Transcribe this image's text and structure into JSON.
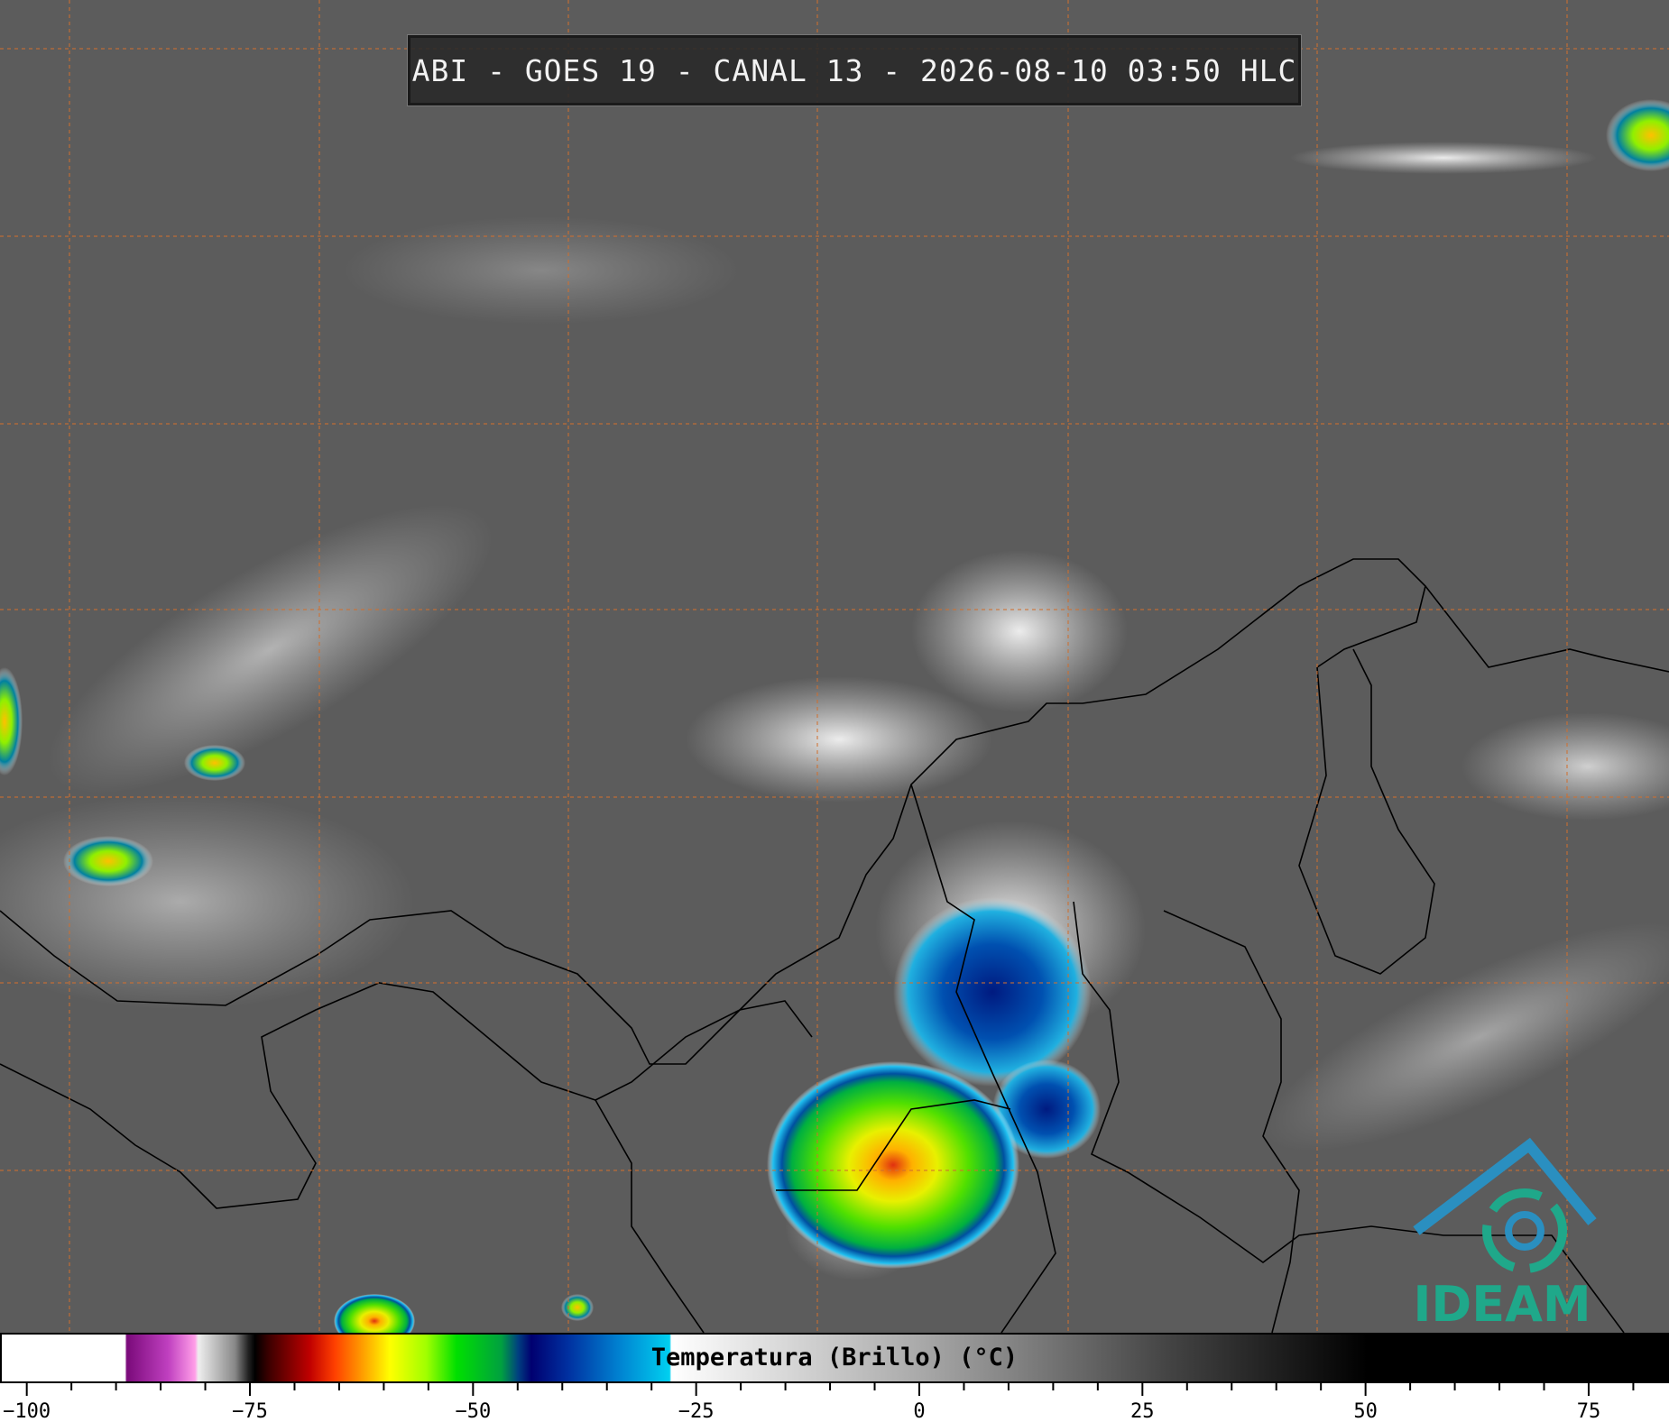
{
  "header": {
    "title": "ABI - GOES 19 - CANAL 13 - 2026-08-10 03:50 HLC"
  },
  "logo": {
    "text": "IDEAM"
  },
  "colorbar": {
    "label": "Temperatura (Brillo) (°C)",
    "range": [
      -103,
      84
    ],
    "ticks": [
      {
        "value": -100,
        "label": "−100"
      },
      {
        "value": -75,
        "label": "−75"
      },
      {
        "value": -50,
        "label": "−50"
      },
      {
        "value": -25,
        "label": "−25"
      },
      0,
      25,
      50,
      75
    ],
    "minor_ticks": [
      -95,
      -90,
      -85,
      -80,
      -70,
      -65,
      -60,
      -55,
      -45,
      -40,
      -35,
      -30,
      -20,
      -15,
      -10,
      -5,
      5,
      10,
      15,
      20,
      30,
      35,
      40,
      45,
      55,
      60,
      65,
      70,
      80
    ]
  }
}
